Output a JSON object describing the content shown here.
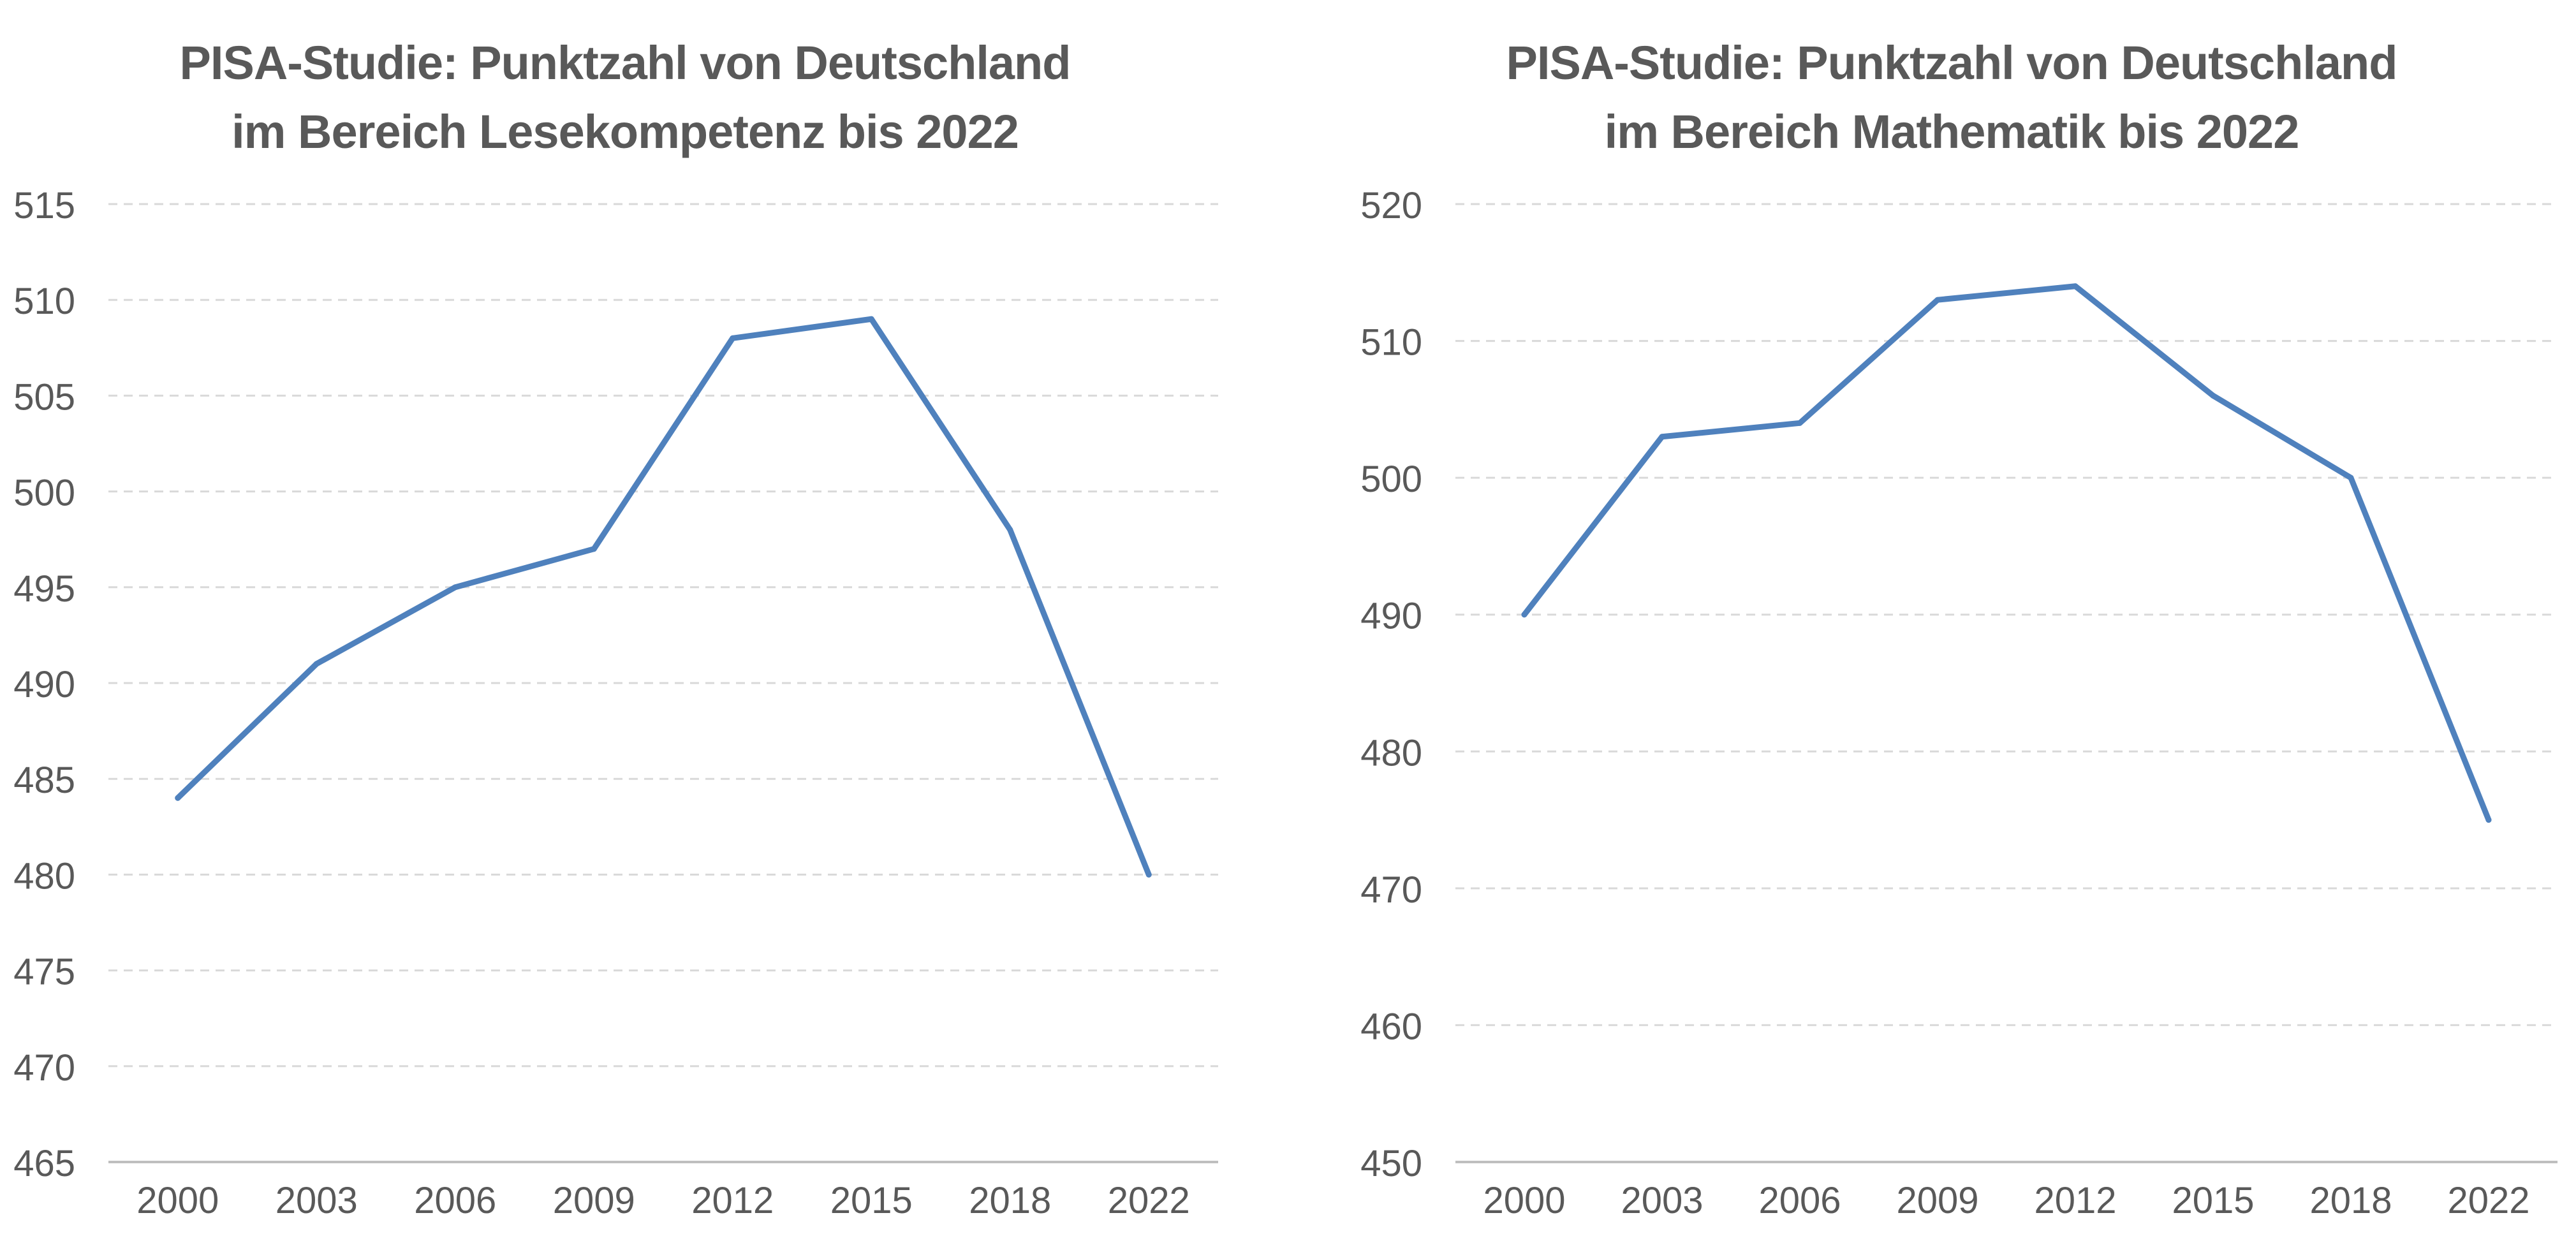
{
  "chart_data": [
    {
      "type": "line",
      "title_lines": [
        "PISA-Studie: Punktzahl von Deutschland",
        "im Bereich Lesekompetenz bis 2022"
      ],
      "categories": [
        "2000",
        "2003",
        "2006",
        "2009",
        "2012",
        "2015",
        "2018",
        "2022"
      ],
      "series": [
        {
          "values": [
            484,
            491,
            495,
            497,
            508,
            509,
            498,
            480
          ]
        }
      ],
      "ylim": [
        465,
        515
      ],
      "yticks": [
        465,
        470,
        475,
        480,
        485,
        490,
        495,
        500,
        505,
        510,
        515
      ],
      "grid": true,
      "line_color": "#4f81bd",
      "grid_color": "#d9d9d9",
      "axis_color": "#bfbfbf",
      "text_color": "#595959"
    },
    {
      "type": "line",
      "title_lines": [
        "PISA-Studie: Punktzahl von Deutschland",
        "im Bereich Mathematik bis 2022"
      ],
      "categories": [
        "2000",
        "2003",
        "2006",
        "2009",
        "2012",
        "2015",
        "2018",
        "2022"
      ],
      "series": [
        {
          "values": [
            490,
            503,
            504,
            513,
            514,
            506,
            500,
            475
          ]
        }
      ],
      "ylim": [
        450,
        520
      ],
      "yticks": [
        450,
        460,
        470,
        480,
        490,
        500,
        510,
        520
      ],
      "grid": true,
      "line_color": "#4f81bd",
      "grid_color": "#d9d9d9",
      "axis_color": "#bfbfbf",
      "text_color": "#595959"
    }
  ]
}
